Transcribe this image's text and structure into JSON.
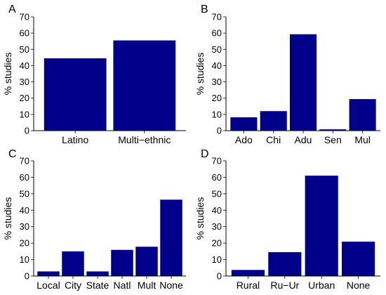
{
  "bar_color": "#00008b",
  "chart_data": [
    {
      "type": "bar",
      "panel": "A",
      "ylabel": "% studies",
      "ylim": [
        0,
        70
      ],
      "yticks": [
        0,
        10,
        20,
        30,
        40,
        50,
        60,
        70
      ],
      "categories": [
        "Latino",
        "Multi−ethnic"
      ],
      "values": [
        44.5,
        55.5
      ]
    },
    {
      "type": "bar",
      "panel": "B",
      "ylabel": "% studies",
      "ylim": [
        0,
        70
      ],
      "yticks": [
        0,
        10,
        20,
        30,
        40,
        50,
        60,
        70
      ],
      "categories": [
        "Ado",
        "Chi",
        "Adu",
        "Sen",
        "Mul"
      ],
      "values": [
        8.2,
        12.0,
        59.3,
        0.8,
        19.4
      ]
    },
    {
      "type": "bar",
      "panel": "C",
      "ylabel": "% studies",
      "ylim": [
        0,
        70
      ],
      "yticks": [
        0,
        10,
        20,
        30,
        40,
        50,
        60,
        70
      ],
      "categories": [
        "Local",
        "City",
        "State",
        "Natl",
        "Mult",
        "None"
      ],
      "values": [
        2.8,
        15.0,
        2.8,
        15.9,
        17.8,
        46.4
      ]
    },
    {
      "type": "bar",
      "panel": "D",
      "ylabel": "% studies",
      "ylim": [
        0,
        70
      ],
      "yticks": [
        0,
        10,
        20,
        30,
        40,
        50,
        60,
        70
      ],
      "categories": [
        "Rural",
        "Ru−Ur",
        "Urban",
        "None"
      ],
      "values": [
        3.7,
        14.5,
        61.0,
        20.9
      ]
    }
  ]
}
